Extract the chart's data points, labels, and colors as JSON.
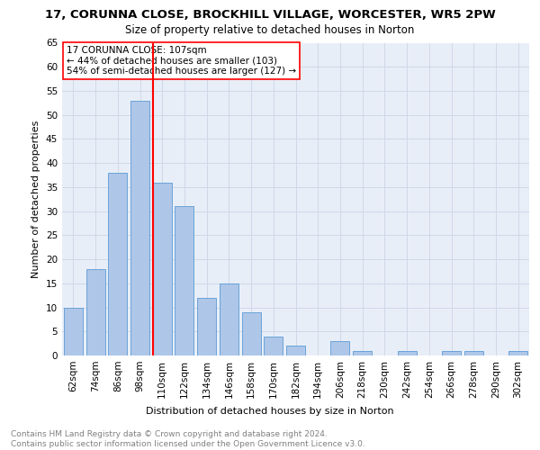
{
  "title": "17, CORUNNA CLOSE, BROCKHILL VILLAGE, WORCESTER, WR5 2PW",
  "subtitle": "Size of property relative to detached houses in Norton",
  "xlabel": "Distribution of detached houses by size in Norton",
  "ylabel": "Number of detached properties",
  "footer_line1": "Contains HM Land Registry data © Crown copyright and database right 2024.",
  "footer_line2": "Contains public sector information licensed under the Open Government Licence v3.0.",
  "categories": [
    "62sqm",
    "74sqm",
    "86sqm",
    "98sqm",
    "110sqm",
    "122sqm",
    "134sqm",
    "146sqm",
    "158sqm",
    "170sqm",
    "182sqm",
    "194sqm",
    "206sqm",
    "218sqm",
    "230sqm",
    "242sqm",
    "254sqm",
    "266sqm",
    "278sqm",
    "290sqm",
    "302sqm"
  ],
  "values": [
    10,
    18,
    38,
    53,
    36,
    31,
    12,
    15,
    9,
    4,
    2,
    0,
    3,
    1,
    0,
    1,
    0,
    1,
    1,
    0,
    1
  ],
  "bar_color": "#aec6e8",
  "bar_edge_color": "#5b9bd5",
  "vline_color": "red",
  "vline_linewidth": 1.5,
  "vline_pos": 3.575,
  "annotation_title": "17 CORUNNA CLOSE: 107sqm",
  "annotation_line1": "← 44% of detached houses are smaller (103)",
  "annotation_line2": "54% of semi-detached houses are larger (127) →",
  "annotation_box_color": "white",
  "annotation_box_edge_color": "red",
  "ylim": [
    0,
    65
  ],
  "yticks": [
    0,
    5,
    10,
    15,
    20,
    25,
    30,
    35,
    40,
    45,
    50,
    55,
    60,
    65
  ],
  "grid_color": "#d0d8e8",
  "background_color": "#e8eef8",
  "title_fontsize": 9.5,
  "subtitle_fontsize": 8.5,
  "xlabel_fontsize": 8,
  "ylabel_fontsize": 8,
  "tick_fontsize": 7.5,
  "annotation_fontsize": 7.5,
  "footer_fontsize": 6.5
}
